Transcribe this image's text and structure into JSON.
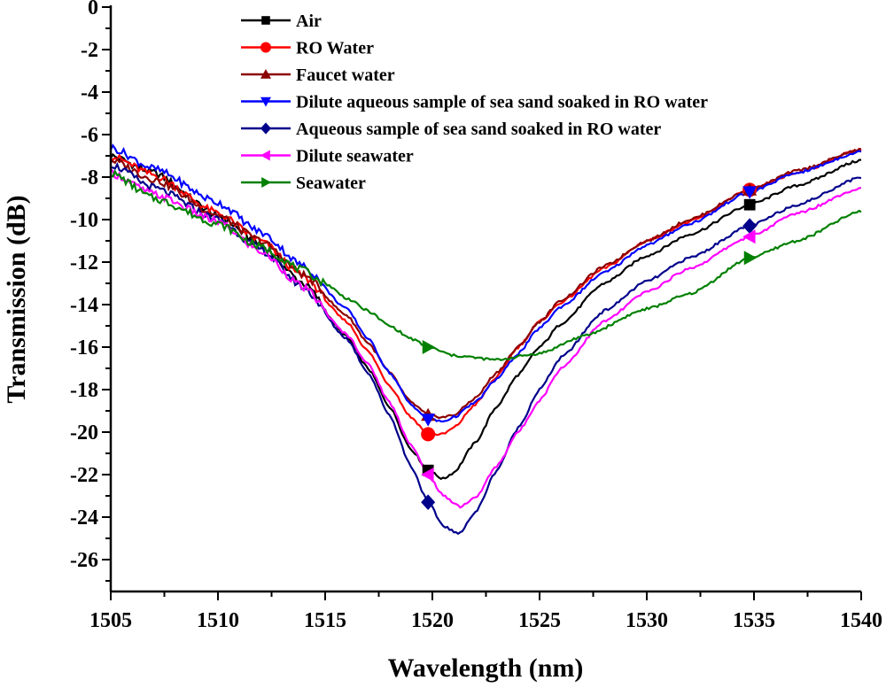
{
  "chart_data": {
    "type": "line",
    "title": "",
    "xlabel": "Wavelength (nm)",
    "ylabel": "Transmission (dB)",
    "xlim": [
      1505,
      1540
    ],
    "ylim": [
      -27.5,
      0
    ],
    "xticks": [
      "1505",
      "1510",
      "1515",
      "1520",
      "1525",
      "1530",
      "1535",
      "1540"
    ],
    "yticks": [
      "0",
      "-2",
      "-4",
      "-6",
      "-8",
      "-10",
      "-12",
      "-14",
      "-16",
      "-18",
      "-20",
      "-22",
      "-24",
      "-26"
    ],
    "grid": false,
    "legend_position": "top-left-center",
    "series": [
      {
        "name": "Air",
        "color": "#000000",
        "marker": "square",
        "points": [
          [
            1505,
            -7.0
          ],
          [
            1507,
            -7.8
          ],
          [
            1510,
            -9.8
          ],
          [
            1512,
            -11.2
          ],
          [
            1514,
            -13.0
          ],
          [
            1516,
            -15.5
          ],
          [
            1517,
            -17.0
          ],
          [
            1518,
            -18.8
          ],
          [
            1519,
            -20.8
          ],
          [
            1519.8,
            -21.8
          ],
          [
            1520.5,
            -22.2
          ],
          [
            1521,
            -21.9
          ],
          [
            1522,
            -20.5
          ],
          [
            1523,
            -18.8
          ],
          [
            1524,
            -17.3
          ],
          [
            1525,
            -16.0
          ],
          [
            1526,
            -14.9
          ],
          [
            1528,
            -13.0
          ],
          [
            1530,
            -11.7
          ],
          [
            1532,
            -10.7
          ],
          [
            1534.8,
            -9.3
          ],
          [
            1537,
            -8.4
          ],
          [
            1540,
            -7.2
          ]
        ],
        "markers_at": [
          1519.8,
          1534.8
        ]
      },
      {
        "name": "RO Water",
        "color": "#ff0000",
        "marker": "circle",
        "points": [
          [
            1505,
            -7.0
          ],
          [
            1507,
            -7.9
          ],
          [
            1510,
            -9.7
          ],
          [
            1512,
            -11.0
          ],
          [
            1514,
            -12.7
          ],
          [
            1516,
            -14.8
          ],
          [
            1517,
            -16.2
          ],
          [
            1518,
            -17.8
          ],
          [
            1519,
            -19.3
          ],
          [
            1519.8,
            -20.1
          ],
          [
            1520.5,
            -20.1
          ],
          [
            1521,
            -19.8
          ],
          [
            1522,
            -18.7
          ],
          [
            1523,
            -17.4
          ],
          [
            1524,
            -16.0
          ],
          [
            1525,
            -14.8
          ],
          [
            1526,
            -13.9
          ],
          [
            1528,
            -12.3
          ],
          [
            1530,
            -11.0
          ],
          [
            1532,
            -10.1
          ],
          [
            1534.8,
            -8.6
          ],
          [
            1537,
            -7.8
          ],
          [
            1540,
            -6.7
          ]
        ],
        "markers_at": [
          1519.8,
          1534.8
        ]
      },
      {
        "name": "Faucet water",
        "color": "#8b0000",
        "marker": "triangle-up",
        "points": [
          [
            1505,
            -7.2
          ],
          [
            1507,
            -8.1
          ],
          [
            1510,
            -9.8
          ],
          [
            1512,
            -11.0
          ],
          [
            1514,
            -12.6
          ],
          [
            1516,
            -14.5
          ],
          [
            1517,
            -15.8
          ],
          [
            1518,
            -17.2
          ],
          [
            1519,
            -18.6
          ],
          [
            1519.8,
            -19.2
          ],
          [
            1520.5,
            -19.3
          ],
          [
            1521,
            -19.2
          ],
          [
            1522,
            -18.4
          ],
          [
            1523,
            -17.2
          ],
          [
            1524,
            -16.0
          ],
          [
            1525,
            -14.8
          ],
          [
            1526,
            -13.8
          ],
          [
            1528,
            -12.2
          ],
          [
            1530,
            -11.0
          ],
          [
            1532,
            -10.0
          ],
          [
            1534.8,
            -8.6
          ],
          [
            1537,
            -7.7
          ],
          [
            1540,
            -6.7
          ]
        ],
        "markers_at": [
          1519.8,
          1534.8
        ]
      },
      {
        "name": "Dilute aqueous sample of sea sand soaked in RO water",
        "color": "#0000ff",
        "marker": "triangle-down",
        "points": [
          [
            1505,
            -6.6
          ],
          [
            1507,
            -7.6
          ],
          [
            1510,
            -9.2
          ],
          [
            1512,
            -10.6
          ],
          [
            1514,
            -12.2
          ],
          [
            1516,
            -14.2
          ],
          [
            1517,
            -15.6
          ],
          [
            1518,
            -17.2
          ],
          [
            1519,
            -18.7
          ],
          [
            1519.8,
            -19.4
          ],
          [
            1520.5,
            -19.5
          ],
          [
            1521,
            -19.3
          ],
          [
            1522,
            -18.6
          ],
          [
            1523,
            -17.5
          ],
          [
            1524,
            -16.3
          ],
          [
            1525,
            -15.1
          ],
          [
            1526,
            -14.1
          ],
          [
            1528,
            -12.5
          ],
          [
            1530,
            -11.2
          ],
          [
            1532,
            -10.2
          ],
          [
            1534.8,
            -8.7
          ],
          [
            1537,
            -7.8
          ],
          [
            1540,
            -6.8
          ]
        ],
        "markers_at": [
          1519.8,
          1534.8
        ]
      },
      {
        "name": "Aqueous sample of sea sand soaked in RO water",
        "color": "#00008b",
        "marker": "diamond",
        "points": [
          [
            1505,
            -7.4
          ],
          [
            1507,
            -8.5
          ],
          [
            1510,
            -10.0
          ],
          [
            1512,
            -11.4
          ],
          [
            1514,
            -13.2
          ],
          [
            1516,
            -15.6
          ],
          [
            1517,
            -17.2
          ],
          [
            1518,
            -19.2
          ],
          [
            1519,
            -21.6
          ],
          [
            1519.8,
            -23.3
          ],
          [
            1520.5,
            -24.4
          ],
          [
            1521.2,
            -24.8
          ],
          [
            1522,
            -23.8
          ],
          [
            1523,
            -21.8
          ],
          [
            1524,
            -19.8
          ],
          [
            1525,
            -18.0
          ],
          [
            1526,
            -16.5
          ],
          [
            1528,
            -14.3
          ],
          [
            1530,
            -12.9
          ],
          [
            1532,
            -11.8
          ],
          [
            1534.8,
            -10.3
          ],
          [
            1537,
            -9.3
          ],
          [
            1540,
            -8.0
          ]
        ],
        "markers_at": [
          1519.8,
          1534.8
        ]
      },
      {
        "name": "Dilute seawater",
        "color": "#ff00ff",
        "marker": "triangle-left",
        "points": [
          [
            1505,
            -7.8
          ],
          [
            1507,
            -8.8
          ],
          [
            1510,
            -10.1
          ],
          [
            1512,
            -11.5
          ],
          [
            1514,
            -13.2
          ],
          [
            1516,
            -15.4
          ],
          [
            1517,
            -16.8
          ],
          [
            1518,
            -18.6
          ],
          [
            1519,
            -20.6
          ],
          [
            1519.8,
            -22.0
          ],
          [
            1520.5,
            -23.0
          ],
          [
            1521.3,
            -23.5
          ],
          [
            1522,
            -23.1
          ],
          [
            1523,
            -21.6
          ],
          [
            1524,
            -20.0
          ],
          [
            1525,
            -18.5
          ],
          [
            1526,
            -17.0
          ],
          [
            1528,
            -14.8
          ],
          [
            1530,
            -13.4
          ],
          [
            1532,
            -12.3
          ],
          [
            1534.8,
            -10.8
          ],
          [
            1537,
            -9.7
          ],
          [
            1540,
            -8.5
          ]
        ],
        "markers_at": [
          1519.8,
          1534.8
        ]
      },
      {
        "name": "Seawater",
        "color": "#008000",
        "marker": "triangle-right",
        "points": [
          [
            1505,
            -7.8
          ],
          [
            1507,
            -9.0
          ],
          [
            1510,
            -10.2
          ],
          [
            1512,
            -11.3
          ],
          [
            1514,
            -12.4
          ],
          [
            1515,
            -13.0
          ],
          [
            1516,
            -13.7
          ],
          [
            1517,
            -14.3
          ],
          [
            1518,
            -15.0
          ],
          [
            1519,
            -15.6
          ],
          [
            1519.8,
            -16.0
          ],
          [
            1521,
            -16.4
          ],
          [
            1523,
            -16.6
          ],
          [
            1525,
            -16.3
          ],
          [
            1527,
            -15.5
          ],
          [
            1530,
            -14.2
          ],
          [
            1532,
            -13.5
          ],
          [
            1534.8,
            -11.8
          ],
          [
            1537,
            -11.0
          ],
          [
            1540,
            -9.6
          ]
        ],
        "markers_at": [
          1519.8,
          1534.8
        ]
      }
    ]
  }
}
